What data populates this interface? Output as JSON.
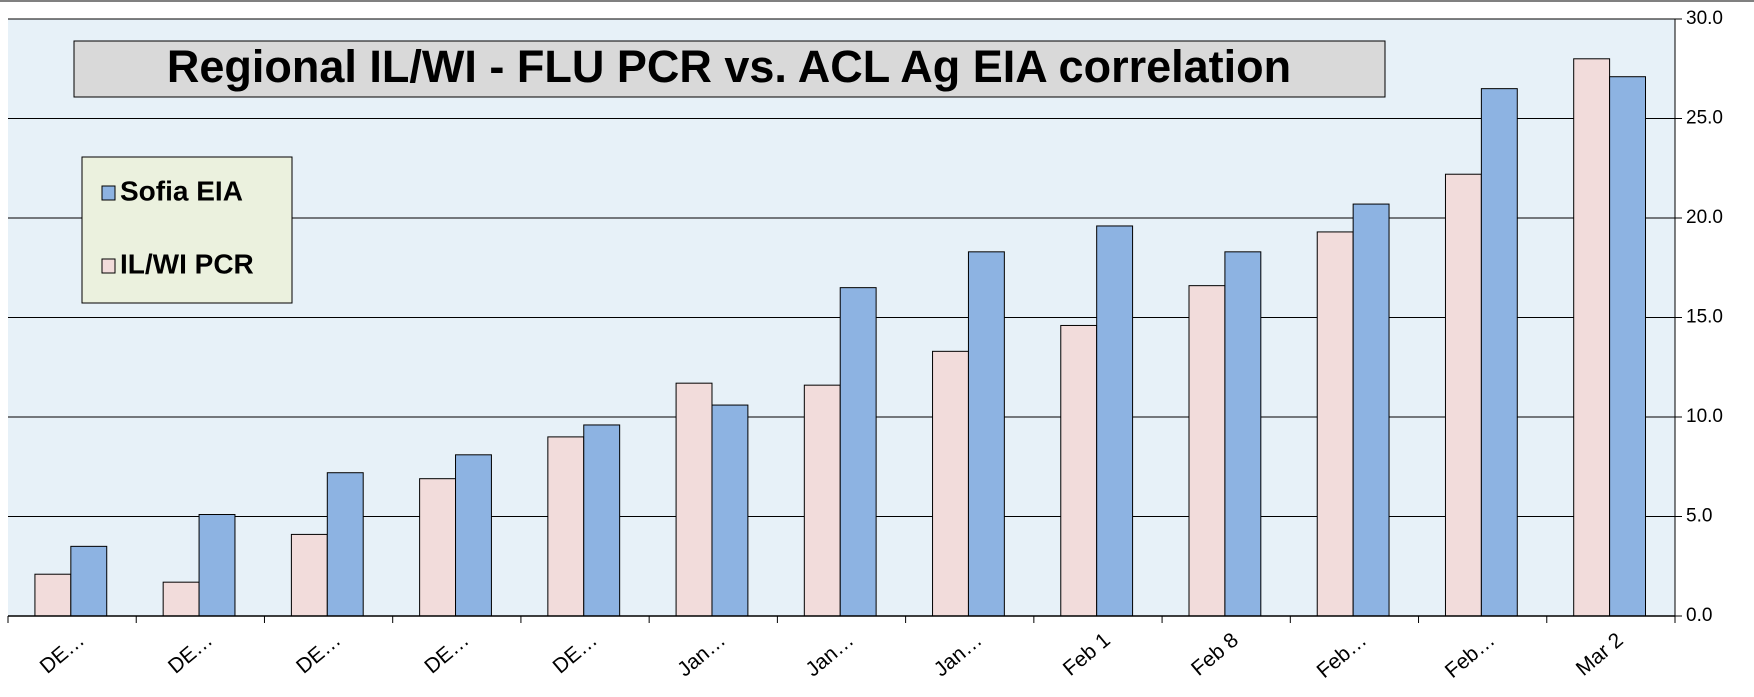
{
  "chart_data": {
    "type": "bar",
    "title": "Regional IL/WI -  FLU PCR vs. ACL Ag EIA correlation",
    "categories": [
      "DE…",
      "DE…",
      "DE…",
      "DE…",
      "DE…",
      "Jan…",
      "Jan…",
      "Jan…",
      "Feb 1",
      "Feb 8",
      "Feb…",
      "Feb…",
      "Mar 2"
    ],
    "series": [
      {
        "name": "IL/WI PCR",
        "color": "#f2dcdb",
        "values": [
          2.1,
          1.7,
          4.1,
          6.9,
          9.0,
          11.7,
          11.6,
          13.3,
          14.6,
          16.6,
          19.3,
          22.2,
          28.0
        ]
      },
      {
        "name": "Sofia EIA",
        "color": "#8db3e2",
        "values": [
          3.5,
          5.1,
          7.2,
          8.1,
          9.6,
          10.6,
          16.5,
          18.3,
          19.6,
          18.3,
          20.7,
          26.5,
          27.1
        ]
      }
    ],
    "ylim": [
      0,
      30
    ],
    "yticks": [
      {
        "value": 0,
        "label": "0.0"
      },
      {
        "value": 5,
        "label": "5.0"
      },
      {
        "value": 10,
        "label": "10.0"
      },
      {
        "value": 15,
        "label": "15.0"
      },
      {
        "value": 20,
        "label": "20.0"
      },
      {
        "value": 25,
        "label": "25.0"
      },
      {
        "value": 30,
        "label": "30.0"
      }
    ],
    "grid": true
  }
}
